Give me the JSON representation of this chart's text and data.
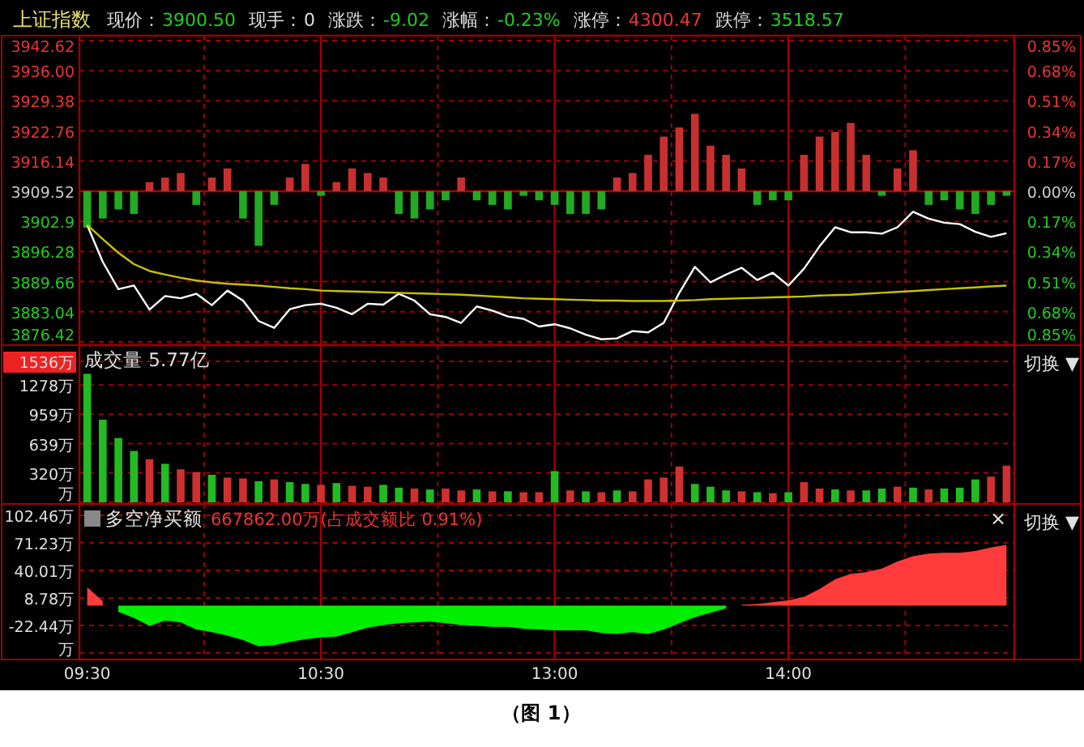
{
  "chart_data": [
    {
      "type": "line",
      "title": "上证指数",
      "annotations": [
        "现价：",
        "3900.50",
        "现手：",
        "0",
        "涨跌：",
        "-9.02",
        "涨幅：",
        "-0.23%",
        "涨停：",
        "4300.47",
        "跌停：",
        "3518.57"
      ],
      "categories": [
        null,
        null,
        null,
        null,
        null,
        null,
        null,
        null,
        null,
        null,
        null,
        null,
        null,
        null,
        null,
        null,
        null,
        null,
        null,
        null,
        null,
        null,
        null,
        null,
        null,
        null,
        null,
        null,
        null,
        null,
        null,
        null,
        null,
        null,
        null,
        null,
        null,
        null,
        null,
        null,
        null,
        null,
        null,
        null,
        null,
        null,
        null,
        null,
        null,
        null,
        null,
        null,
        null,
        null,
        null,
        null,
        null,
        null,
        null,
        null
      ],
      "ylim": [
        3876.42,
        3942.62
      ],
      "yticks": [
        3876.42,
        3883.04,
        3889.66,
        3896.28,
        3902.9,
        3909.52,
        3916.14,
        3922.76,
        3929.38,
        {
          "value": 3936,
          "label": "3936.00"
        },
        3942.62
      ],
      "y2lim": [
        -0.85,
        0.85
      ],
      "y2ticks": [
        {
          "value": -0.85,
          "label": "0.85%"
        },
        {
          "value": -0.68,
          "label": "0.68%"
        },
        {
          "value": -0.51,
          "label": "0.51%"
        },
        {
          "value": -0.34,
          "label": "0.34%"
        },
        {
          "value": -0.17,
          "label": "0.17%"
        },
        {
          "value": 0,
          "label": "0.00%"
        },
        {
          "value": 0.17,
          "label": "0.17%"
        },
        {
          "value": 0.34,
          "label": "0.34%"
        },
        {
          "value": 0.51,
          "label": "0.51%"
        },
        {
          "value": 0.68,
          "label": "0.68%"
        },
        {
          "value": 0.85,
          "label": "0.85%"
        }
      ],
      "grid": true,
      "tick_labels": "y",
      "ref_lines": [
        {
          "axis": "y",
          "value": 3909.52,
          "color": "#b00000",
          "line_style": "solid"
        }
      ],
      "series": [
        {
          "type": "bar",
          "base": [
            3909.52,
            3909.52,
            3909.52,
            3909.52,
            3909.52,
            3909.52,
            3909.52,
            3909.52,
            3909.52,
            3909.52,
            3909.52,
            3909.52,
            3909.52,
            3909.52,
            3909.52,
            3909.52,
            3909.52,
            3909.52,
            3909.52,
            3909.52,
            3909.52,
            3909.52,
            3909.52,
            3909.52,
            3909.52,
            3909.52,
            3909.52,
            3909.52,
            3909.52,
            3909.52,
            3909.52,
            3909.52,
            3909.52,
            3909.52,
            3909.52,
            3909.52,
            3909.52,
            3909.52,
            3909.52,
            3909.52,
            3909.52,
            3909.52,
            3909.52,
            3909.52,
            3909.52,
            3909.52,
            3909.52,
            3909.52,
            3909.52,
            3909.52,
            3909.52,
            3909.52,
            3909.52,
            3909.52,
            3909.52,
            3909.52,
            3909.52,
            3909.52,
            3909.52,
            3909.52
          ],
          "values": [
            -8,
            -6,
            -4,
            -5,
            2,
            3,
            4,
            -3,
            3,
            5,
            -6,
            -12,
            -3,
            3,
            6,
            -1,
            2,
            5,
            4,
            3,
            -5,
            -6,
            -4,
            -2,
            3,
            -2,
            -3,
            -4,
            -1,
            -2,
            -3,
            -5,
            -5,
            -4,
            3,
            4,
            8,
            12,
            14,
            17,
            10,
            8,
            5,
            -3,
            -2,
            -2,
            8,
            12,
            13,
            15,
            8,
            -1,
            5,
            9,
            -3,
            -2,
            -4,
            -5,
            -3,
            -1
          ],
          "colors": [
            "#22aa22",
            "#22aa22",
            "#22aa22",
            "#22aa22",
            "#c83030",
            "#c83030",
            "#c83030",
            "#22aa22",
            "#c83030",
            "#c83030",
            "#22aa22",
            "#22aa22",
            "#22aa22",
            "#c83030",
            "#c83030",
            "#22aa22",
            "#c83030",
            "#c83030",
            "#c83030",
            "#c83030",
            "#22aa22",
            "#22aa22",
            "#22aa22",
            "#22aa22",
            "#c83030",
            "#22aa22",
            "#22aa22",
            "#22aa22",
            "#22aa22",
            "#22aa22",
            "#22aa22",
            "#22aa22",
            "#22aa22",
            "#22aa22",
            "#c83030",
            "#c83030",
            "#c83030",
            "#c83030",
            "#c83030",
            "#c83030",
            "#c83030",
            "#c83030",
            "#c83030",
            "#22aa22",
            "#22aa22",
            "#22aa22",
            "#c83030",
            "#c83030",
            "#c83030",
            "#c83030",
            "#c83030",
            "#22aa22",
            "#c83030",
            "#c83030",
            "#22aa22",
            "#22aa22",
            "#22aa22",
            "#22aa22",
            "#22aa22",
            "#22aa22"
          ]
        },
        {
          "type": "line",
          "color": "#ffffff",
          "values": [
            3902.1,
            3894,
            3888,
            3888.8,
            3883.5,
            3886.5,
            3886,
            3887,
            3884.5,
            3887.7,
            3885.5,
            3881,
            3879.5,
            3883.6,
            3884.5,
            3884.8,
            3883.9,
            3882.5,
            3884.8,
            3884.6,
            3887,
            3885.5,
            3882.5,
            3881.9,
            3880.6,
            3884.2,
            3883.3,
            3882,
            3881.5,
            3879.8,
            3880.3,
            3879.4,
            3878,
            3877,
            3877.2,
            3878.8,
            3878.5,
            3880.6,
            3887.2,
            3892.9,
            3889.5,
            3891.2,
            3892.7,
            3890,
            3891.6,
            3888.8,
            3892.5,
            3897.4,
            3901.6,
            3900.5,
            3900.5,
            3900.2,
            3901.6,
            3905,
            3903.5,
            3902.6,
            3902.3,
            3900.6,
            3899.5,
            3900.3
          ]
        },
        {
          "type": "line",
          "color": "#c8c000",
          "values": [
            3902.1,
            3899,
            3896,
            3893.5,
            3892,
            3891.2,
            3890.5,
            3889.9,
            3889.5,
            3889.2,
            3889,
            3888.8,
            3888.5,
            3888.2,
            3888,
            3887.7,
            3887.6,
            3887.5,
            3887.4,
            3887.3,
            3887.2,
            3887.1,
            3887,
            3886.9,
            3886.8,
            3886.6,
            3886.4,
            3886.2,
            3886,
            3885.9,
            3885.8,
            3885.7,
            3885.6,
            3885.5,
            3885.5,
            3885.4,
            3885.4,
            3885.4,
            3885.5,
            3885.6,
            3885.8,
            3885.9,
            3886,
            3886.1,
            3886.2,
            3886.3,
            3886.4,
            3886.6,
            3886.7,
            3886.8,
            3887,
            3887.2,
            3887.4,
            3887.6,
            3887.8,
            3888,
            3888.2,
            3888.4,
            3888.6,
            3888.8
          ]
        }
      ]
    },
    {
      "type": "bar",
      "title": "成交量 5.77亿",
      "annotations": [
        "切换 ▼"
      ],
      "categories": [
        null,
        null,
        null,
        null,
        null,
        null,
        null,
        null,
        null,
        null,
        null,
        null,
        null,
        null,
        null,
        null,
        null,
        null,
        null,
        null,
        null,
        null,
        null,
        null,
        null,
        null,
        null,
        null,
        null,
        null,
        null,
        null,
        null,
        null,
        null,
        null,
        null,
        null,
        null,
        null,
        null,
        null,
        null,
        null,
        null,
        null,
        null,
        null,
        null,
        null,
        null,
        null,
        null,
        null,
        null,
        null,
        null,
        null,
        null,
        null
      ],
      "ylim": [
        0,
        1536
      ],
      "yticks": [
        {
          "value": 0,
          "label": "万"
        },
        {
          "value": 320,
          "label": "320万"
        },
        {
          "value": 639,
          "label": "639万"
        },
        {
          "value": 959,
          "label": "959万"
        },
        {
          "value": 1278,
          "label": "1278万"
        },
        {
          "value": 1536,
          "label": "1536万"
        }
      ],
      "grid": true,
      "tick_labels": "y",
      "values": [
        1400,
        900,
        700,
        560,
        470,
        420,
        360,
        330,
        300,
        270,
        260,
        230,
        250,
        220,
        200,
        190,
        210,
        180,
        170,
        190,
        160,
        150,
        140,
        150,
        130,
        140,
        120,
        120,
        110,
        110,
        340,
        130,
        120,
        110,
        130,
        120,
        250,
        270,
        390,
        200,
        170,
        130,
        120,
        110,
        100,
        110,
        220,
        150,
        140,
        130,
        130,
        150,
        170,
        160,
        140,
        150,
        160,
        250,
        280,
        400
      ],
      "colors": [
        "#22bb22",
        "#22bb22",
        "#22bb22",
        "#22bb22",
        "#d03030",
        "#22bb22",
        "#d03030",
        "#d03030",
        "#22bb22",
        "#d03030",
        "#d03030",
        "#22bb22",
        "#d03030",
        "#22bb22",
        "#22bb22",
        "#d03030",
        "#22bb22",
        "#d03030",
        "#d03030",
        "#22bb22",
        "#22bb22",
        "#d03030",
        "#22bb22",
        "#d03030",
        "#d03030",
        "#22bb22",
        "#d03030",
        "#22bb22",
        "#d03030",
        "#d03030",
        "#22bb22",
        "#d03030",
        "#22bb22",
        "#d03030",
        "#22bb22",
        "#d03030",
        "#d03030",
        "#d03030",
        "#d03030",
        "#22bb22",
        "#22bb22",
        "#22bb22",
        "#d03030",
        "#22bb22",
        "#d03030",
        "#22bb22",
        "#d03030",
        "#d03030",
        "#22bb22",
        "#d03030",
        "#22bb22",
        "#22bb22",
        "#d03030",
        "#22bb22",
        "#d03030",
        "#22bb22",
        "#22bb22",
        "#22bb22",
        "#d03030",
        "#d03030"
      ]
    },
    {
      "type": "area",
      "title": "多空净买额",
      "subtitle": "667862.00万(占成交额比 0.91%)",
      "annotations": [
        "×",
        "切换 ▼",
        "（图 1）"
      ],
      "categories": [
        "09:30",
        null,
        null,
        null,
        null,
        null,
        null,
        null,
        null,
        null,
        null,
        null,
        null,
        null,
        null,
        "10:30",
        null,
        null,
        null,
        null,
        null,
        null,
        null,
        null,
        null,
        null,
        null,
        null,
        null,
        null,
        "13:00",
        null,
        null,
        null,
        null,
        null,
        null,
        null,
        null,
        null,
        null,
        null,
        null,
        null,
        null,
        "14:00",
        null,
        null,
        null,
        null,
        null,
        null,
        null,
        null,
        null,
        null,
        null,
        null,
        null,
        null
      ],
      "ylim": [
        -53.67,
        102.46
      ],
      "yticks": [
        {
          "value": -53.67,
          "label": "万"
        },
        {
          "value": -22.44,
          "label": "-22.44万"
        },
        {
          "value": 8.78,
          "label": "8.78万"
        },
        {
          "value": 40.01,
          "label": "40.01万"
        },
        {
          "value": 71.23,
          "label": "71.23万"
        },
        {
          "value": 102.46,
          "label": "102.46万"
        }
      ],
      "grid": true,
      "series": [
        {
          "color": "#ff3b3b",
          "values": [
            21,
            5,
            null,
            null,
            null,
            null,
            null,
            null,
            null,
            null,
            null,
            null,
            null,
            null,
            null,
            null,
            null,
            null,
            null,
            null,
            null,
            null,
            null,
            null,
            null,
            null,
            null,
            null,
            null,
            null,
            null,
            null,
            null,
            null,
            null,
            null,
            null,
            null,
            null,
            null,
            null,
            null,
            1,
            2,
            4,
            6,
            10,
            19,
            30,
            36,
            38,
            42,
            50,
            56,
            59,
            60,
            60,
            62,
            66,
            69
          ]
        },
        {
          "color": "#00ee00",
          "values": [
            null,
            null,
            -7,
            -14,
            -23,
            -17,
            -19,
            -27,
            -30,
            -34,
            -39,
            -46,
            -45,
            -41,
            -38,
            -36,
            -35,
            -30,
            -25,
            -22,
            -20,
            -19,
            -18,
            -20,
            -22,
            -23,
            -24,
            -24,
            -26,
            -27,
            -28,
            -28,
            -28,
            -31,
            -32,
            -30,
            -32,
            -27,
            -20,
            -13,
            -8,
            -3,
            null,
            null,
            null,
            null,
            null,
            null,
            null,
            null,
            null,
            null,
            null,
            null,
            null,
            null,
            null,
            null,
            null,
            null
          ]
        }
      ]
    }
  ]
}
